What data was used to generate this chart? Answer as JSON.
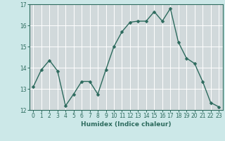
{
  "x": [
    0,
    1,
    2,
    3,
    4,
    5,
    6,
    7,
    8,
    9,
    10,
    11,
    12,
    13,
    14,
    15,
    16,
    17,
    18,
    19,
    20,
    21,
    22,
    23
  ],
  "y": [
    13.1,
    13.9,
    14.35,
    13.85,
    12.2,
    12.75,
    13.35,
    13.35,
    12.75,
    13.9,
    15.0,
    15.7,
    16.15,
    16.2,
    16.2,
    16.65,
    16.2,
    16.8,
    15.2,
    14.45,
    14.2,
    13.35,
    12.35,
    12.15
  ],
  "line_color": "#2d6b5e",
  "marker_size": 2.5,
  "bg_color": "#cce8e8",
  "grid_major_color": "#b8c8c8",
  "grid_fill_color": "#dce8e8",
  "xlabel": "Humidex (Indice chaleur)",
  "ylim": [
    12,
    17
  ],
  "xlim": [
    -0.5,
    23.5
  ],
  "yticks": [
    12,
    13,
    14,
    15,
    16,
    17
  ],
  "xticks": [
    0,
    1,
    2,
    3,
    4,
    5,
    6,
    7,
    8,
    9,
    10,
    11,
    12,
    13,
    14,
    15,
    16,
    17,
    18,
    19,
    20,
    21,
    22,
    23
  ],
  "tick_color": "#2d6b5e",
  "label_color": "#2d6b5e",
  "axis_color": "#2d6b5e"
}
